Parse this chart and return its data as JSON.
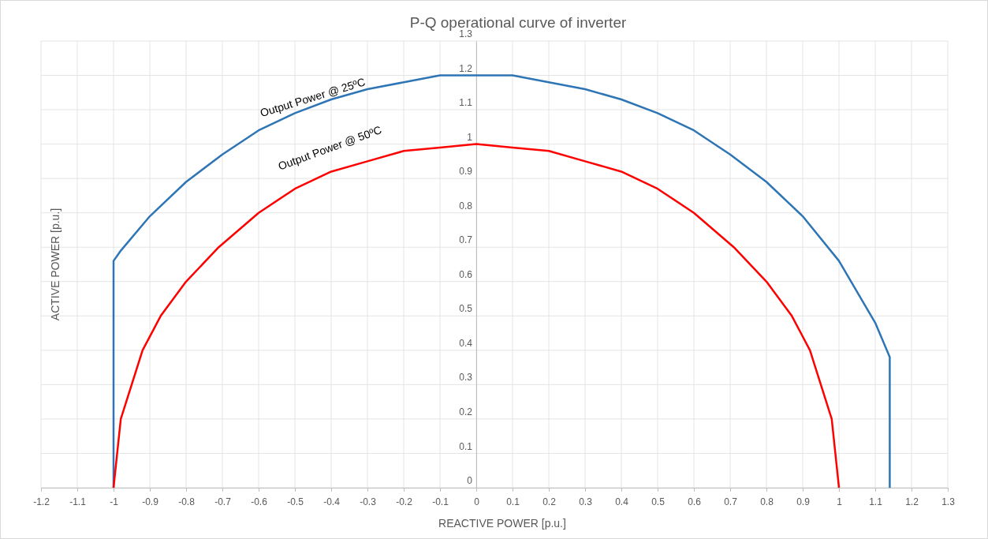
{
  "chart_data": {
    "type": "line",
    "title": "P-Q operational curve of inverter",
    "xlabel": "REACTIVE POWER [p.u.]",
    "ylabel": "ACTIVE POWER [p.u.]",
    "xlim": [
      -1.2,
      1.3
    ],
    "ylim": [
      0,
      1.3
    ],
    "xticks": [
      -1.2,
      -1.1,
      -1,
      -0.9,
      -0.8,
      -0.7,
      -0.6,
      -0.5,
      -0.4,
      -0.3,
      -0.2,
      -0.1,
      0,
      0.1,
      0.2,
      0.3,
      0.4,
      0.5,
      0.6,
      0.7,
      0.8,
      0.9,
      1,
      1.1,
      1.2,
      1.3
    ],
    "yticks": [
      0,
      0.1,
      0.2,
      0.3,
      0.4,
      0.5,
      0.6,
      0.7,
      0.8,
      0.9,
      1,
      1.1,
      1.2,
      1.3
    ],
    "grid": true,
    "marker": "none",
    "line_style": "solid",
    "series": [
      {
        "color": "#2e75b6",
        "x": [
          -1,
          -1,
          -0.98,
          -0.9,
          -0.8,
          -0.7,
          -0.6,
          -0.5,
          -0.4,
          -0.3,
          -0.2,
          -0.1,
          0,
          0.1,
          0.2,
          0.3,
          0.4,
          0.5,
          0.6,
          0.7,
          0.8,
          0.9,
          1,
          1.1,
          1.14,
          1.14
        ],
        "values": [
          0,
          0.66,
          0.69,
          0.79,
          0.89,
          0.97,
          1.04,
          1.09,
          1.13,
          1.16,
          1.18,
          1.2,
          1.2,
          1.2,
          1.18,
          1.16,
          1.13,
          1.09,
          1.04,
          0.97,
          0.89,
          0.79,
          0.66,
          0.48,
          0.38,
          0
        ]
      },
      {
        "color": "#ff0000",
        "x": [
          -1,
          -0.99,
          -0.98,
          -0.95,
          -0.92,
          -0.87,
          -0.8,
          -0.71,
          -0.6,
          -0.5,
          -0.4,
          -0.3,
          -0.2,
          -0.1,
          0,
          0.1,
          0.2,
          0.3,
          0.4,
          0.5,
          0.6,
          0.71,
          0.8,
          0.87,
          0.92,
          0.95,
          0.98,
          0.99,
          1
        ],
        "values": [
          0,
          0.1,
          0.2,
          0.3,
          0.4,
          0.5,
          0.6,
          0.7,
          0.8,
          0.87,
          0.92,
          0.95,
          0.98,
          0.99,
          1,
          0.99,
          0.98,
          0.95,
          0.92,
          0.87,
          0.8,
          0.7,
          0.6,
          0.5,
          0.4,
          0.3,
          0.2,
          0.1,
          0
        ]
      }
    ],
    "annotations": [
      "Output Power @ 25ºC",
      "Output Power @ 50ºC"
    ]
  }
}
